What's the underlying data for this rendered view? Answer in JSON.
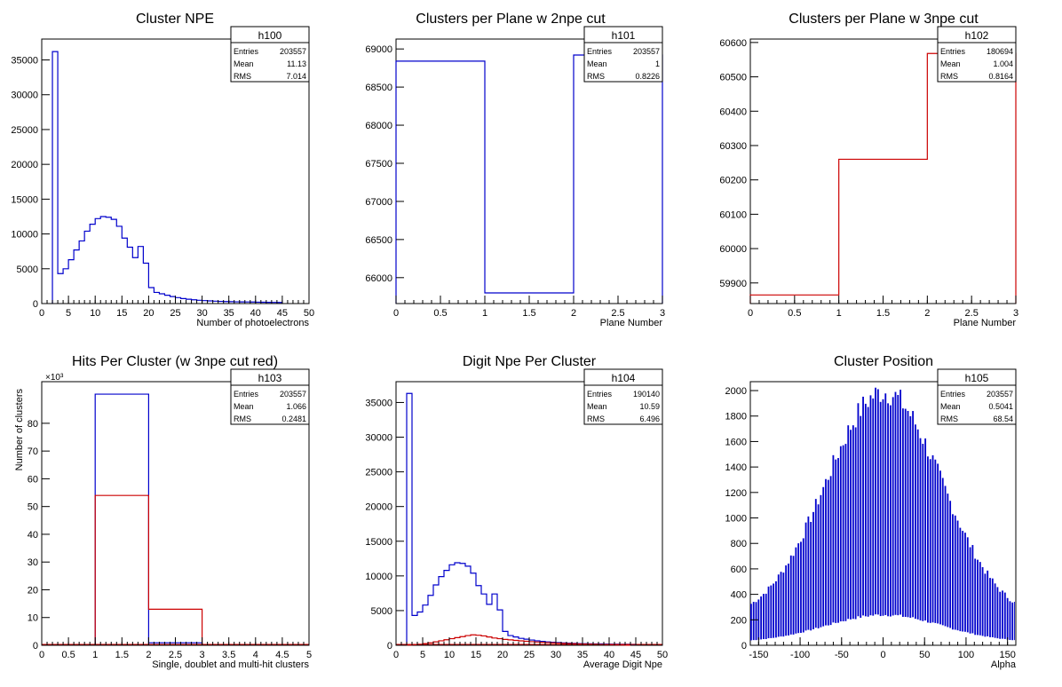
{
  "chart_data": [
    {
      "type": "histogram",
      "title": "Cluster NPE",
      "xlabel": "Number of photoelectrons",
      "ylabel": "",
      "xlim": [
        0,
        50
      ],
      "ylim": [
        0,
        38000
      ],
      "xticks": [
        0,
        5,
        10,
        15,
        20,
        25,
        30,
        35,
        40,
        45,
        50
      ],
      "yticks": [
        0,
        5000,
        10000,
        15000,
        20000,
        25000,
        30000,
        35000
      ],
      "stats": {
        "name": "h100",
        "entries_label": "Entries",
        "entries": "203557",
        "mean_label": "Mean",
        "mean": "11.13",
        "rms_label": "RMS",
        "rms": "7.014"
      },
      "series": [
        {
          "color": "#0000cc",
          "bins": [
            [
              2,
              3,
              36200
            ],
            [
              3,
              4,
              4300
            ],
            [
              4,
              5,
              5000
            ],
            [
              5,
              6,
              6300
            ],
            [
              6,
              7,
              7700
            ],
            [
              7,
              8,
              9000
            ],
            [
              8,
              9,
              10400
            ],
            [
              9,
              10,
              11400
            ],
            [
              10,
              11,
              12200
            ],
            [
              11,
              12,
              12500
            ],
            [
              12,
              13,
              12400
            ],
            [
              13,
              14,
              12100
            ],
            [
              14,
              15,
              11100
            ],
            [
              15,
              16,
              9400
            ],
            [
              16,
              17,
              8100
            ],
            [
              17,
              18,
              6600
            ],
            [
              18,
              19,
              8200
            ],
            [
              19,
              20,
              5800
            ],
            [
              20,
              21,
              2300
            ],
            [
              21,
              22,
              1600
            ],
            [
              22,
              23,
              1400
            ],
            [
              23,
              24,
              1200
            ],
            [
              24,
              25,
              1000
            ],
            [
              25,
              26,
              850
            ],
            [
              26,
              27,
              720
            ],
            [
              27,
              28,
              620
            ],
            [
              28,
              29,
              540
            ],
            [
              29,
              30,
              470
            ],
            [
              30,
              31,
              420
            ],
            [
              31,
              32,
              380
            ],
            [
              32,
              33,
              340
            ],
            [
              33,
              34,
              310
            ],
            [
              34,
              35,
              290
            ],
            [
              35,
              36,
              270
            ],
            [
              36,
              37,
              250
            ],
            [
              37,
              38,
              240
            ],
            [
              38,
              39,
              230
            ],
            [
              39,
              40,
              220
            ],
            [
              40,
              41,
              200
            ],
            [
              41,
              42,
              190
            ],
            [
              42,
              43,
              180
            ],
            [
              43,
              44,
              170
            ],
            [
              44,
              45,
              160
            ]
          ]
        }
      ]
    },
    {
      "type": "histogram",
      "title": "Clusters per Plane w 2npe cut",
      "xlabel": "Plane Number",
      "ylabel": "",
      "xlim": [
        0,
        3
      ],
      "ylim": [
        65660,
        69130
      ],
      "xticks": [
        0,
        0.5,
        1,
        1.5,
        2,
        2.5,
        3
      ],
      "yticks": [
        66000,
        66500,
        67000,
        67500,
        68000,
        68500,
        69000
      ],
      "stats": {
        "name": "h101",
        "entries_label": "Entries",
        "entries": "203557",
        "mean_label": "Mean",
        "mean": "1",
        "rms_label": "RMS",
        "rms": "0.8226"
      },
      "series": [
        {
          "color": "#0000cc",
          "bins": [
            [
              0,
              1,
              68840
            ],
            [
              1,
              2,
              65800
            ],
            [
              2,
              3,
              68920
            ]
          ]
        }
      ]
    },
    {
      "type": "histogram",
      "title": "Clusters per Plane w 3npe cut",
      "xlabel": "Plane Number",
      "ylabel": "",
      "xlim": [
        0,
        3
      ],
      "ylim": [
        59840,
        60610
      ],
      "xticks": [
        0,
        0.5,
        1,
        1.5,
        2,
        2.5,
        3
      ],
      "yticks": [
        59900,
        60000,
        60100,
        60200,
        60300,
        60400,
        60500,
        60600
      ],
      "stats": {
        "name": "h102",
        "entries_label": "Entries",
        "entries": "180694",
        "mean_label": "Mean",
        "mean": "1.004",
        "rms_label": "RMS",
        "rms": "0.8164"
      },
      "series": [
        {
          "color": "#cc0000",
          "bins": [
            [
              0,
              1,
              59865
            ],
            [
              1,
              2,
              60260
            ],
            [
              2,
              3,
              60568
            ]
          ]
        }
      ]
    },
    {
      "type": "histogram",
      "title": "Hits Per Cluster (w 3npe cut red)",
      "xlabel": "Single, doublet and multi-hit clusters",
      "ylabel": "Number of clusters",
      "yexponent": "×10³",
      "xlim": [
        0,
        5
      ],
      "ylim": [
        0,
        95
      ],
      "xticks": [
        0,
        0.5,
        1,
        1.5,
        2,
        2.5,
        3,
        3.5,
        4,
        4.5,
        5
      ],
      "yticks": [
        0,
        20,
        40,
        60,
        80
      ],
      "yticklabels": [
        "0",
        "10",
        "20",
        "30",
        "40",
        "50",
        "60",
        "70",
        "80"
      ],
      "yticks_full": [
        0,
        10,
        20,
        30,
        40,
        50,
        60,
        70,
        80
      ],
      "stats": {
        "name": "h103",
        "entries_label": "Entries",
        "entries": "203557",
        "mean_label": "Mean",
        "mean": "1.066",
        "rms_label": "RMS",
        "rms": "0.2481"
      },
      "series": [
        {
          "color": "#0000cc",
          "bins": [
            [
              1,
              2,
              90.5
            ],
            [
              2,
              3,
              0.9
            ]
          ]
        },
        {
          "color": "#cc0000",
          "bins": [
            [
              1,
              2,
              54
            ],
            [
              2,
              3,
              13
            ]
          ]
        }
      ]
    },
    {
      "type": "histogram",
      "title": "Digit Npe Per Cluster",
      "xlabel": "Average Digit Npe",
      "ylabel": "",
      "xlim": [
        0,
        50
      ],
      "ylim": [
        0,
        38000
      ],
      "xticks": [
        0,
        5,
        10,
        15,
        20,
        25,
        30,
        35,
        40,
        45,
        50
      ],
      "yticks": [
        0,
        5000,
        10000,
        15000,
        20000,
        25000,
        30000,
        35000
      ],
      "stats": {
        "name": "h104",
        "entries_label": "Entries",
        "entries": "190140",
        "mean_label": "Mean",
        "mean": "10.59",
        "rms_label": "RMS",
        "rms": "6.496"
      },
      "series": [
        {
          "color": "#0000cc",
          "bins": [
            [
              2,
              3,
              36300
            ],
            [
              3,
              4,
              4300
            ],
            [
              4,
              5,
              4800
            ],
            [
              5,
              6,
              5800
            ],
            [
              6,
              7,
              7200
            ],
            [
              7,
              8,
              8700
            ],
            [
              8,
              9,
              9900
            ],
            [
              9,
              10,
              10800
            ],
            [
              10,
              11,
              11600
            ],
            [
              11,
              12,
              11900
            ],
            [
              12,
              13,
              11800
            ],
            [
              13,
              14,
              11400
            ],
            [
              14,
              15,
              10400
            ],
            [
              15,
              16,
              8600
            ],
            [
              16,
              17,
              7400
            ],
            [
              17,
              18,
              5900
            ],
            [
              18,
              19,
              7400
            ],
            [
              19,
              20,
              5100
            ],
            [
              20,
              21,
              2000
            ],
            [
              21,
              22,
              1400
            ],
            [
              22,
              23,
              1200
            ],
            [
              23,
              24,
              1000
            ],
            [
              24,
              25,
              880
            ],
            [
              25,
              26,
              760
            ],
            [
              26,
              27,
              650
            ],
            [
              27,
              28,
              560
            ],
            [
              28,
              29,
              490
            ],
            [
              29,
              30,
              430
            ],
            [
              30,
              31,
              380
            ],
            [
              31,
              32,
              340
            ],
            [
              32,
              33,
              300
            ],
            [
              33,
              34,
              270
            ],
            [
              34,
              35,
              250
            ],
            [
              35,
              36,
              230
            ],
            [
              36,
              37,
              210
            ],
            [
              37,
              38,
              200
            ],
            [
              38,
              39,
              190
            ],
            [
              39,
              40,
              180
            ],
            [
              40,
              41,
              170
            ],
            [
              41,
              42,
              160
            ],
            [
              42,
              43,
              150
            ],
            [
              43,
              44,
              140
            ],
            [
              44,
              45,
              130
            ]
          ]
        },
        {
          "color": "#cc0000",
          "bins": [
            [
              2,
              3,
              50
            ],
            [
              3,
              4,
              100
            ],
            [
              4,
              5,
              150
            ],
            [
              5,
              6,
              250
            ],
            [
              6,
              7,
              350
            ],
            [
              7,
              8,
              500
            ],
            [
              8,
              9,
              650
            ],
            [
              9,
              10,
              800
            ],
            [
              10,
              11,
              950
            ],
            [
              11,
              12,
              1100
            ],
            [
              12,
              13,
              1250
            ],
            [
              13,
              14,
              1400
            ],
            [
              14,
              15,
              1500
            ],
            [
              15,
              16,
              1450
            ],
            [
              16,
              17,
              1350
            ],
            [
              17,
              18,
              1200
            ],
            [
              18,
              19,
              1050
            ],
            [
              19,
              20,
              950
            ],
            [
              20,
              21,
              850
            ],
            [
              21,
              22,
              780
            ],
            [
              22,
              23,
              700
            ],
            [
              23,
              24,
              640
            ],
            [
              24,
              25,
              580
            ],
            [
              25,
              26,
              520
            ],
            [
              26,
              27,
              470
            ],
            [
              27,
              28,
              430
            ],
            [
              28,
              29,
              390
            ],
            [
              29,
              30,
              350
            ],
            [
              30,
              31,
              310
            ],
            [
              31,
              32,
              280
            ],
            [
              32,
              33,
              250
            ],
            [
              33,
              34,
              220
            ],
            [
              34,
              35,
              200
            ],
            [
              35,
              36,
              180
            ],
            [
              36,
              37,
              160
            ],
            [
              37,
              38,
              140
            ],
            [
              38,
              39,
              120
            ],
            [
              39,
              40,
              100
            ],
            [
              40,
              41,
              80
            ],
            [
              41,
              42,
              60
            ],
            [
              42,
              43,
              40
            ],
            [
              43,
              44,
              20
            ]
          ]
        }
      ]
    },
    {
      "type": "histogram",
      "title": "Cluster Position",
      "xlabel": "Alpha",
      "ylabel": "",
      "xlim": [
        -160,
        160
      ],
      "ylim": [
        0,
        2070
      ],
      "xticks": [
        -150,
        -100,
        -50,
        0,
        50,
        100,
        150
      ],
      "yticks": [
        0,
        200,
        400,
        600,
        800,
        1000,
        1200,
        1400,
        1600,
        1800,
        2000
      ],
      "stats": {
        "name": "h105",
        "entries_label": "Entries",
        "entries": "203557",
        "mean_label": "Mean",
        "mean": "0.5041",
        "rms_label": "RMS",
        "rms": "68.54"
      },
      "series": [
        {
          "color": "#0000cc",
          "style": "dense-spikes",
          "bin_width": 3,
          "amp_center": 1850,
          "amp_sigma": 70,
          "amp_base": 200,
          "low_fraction": 0.12
        }
      ]
    }
  ]
}
